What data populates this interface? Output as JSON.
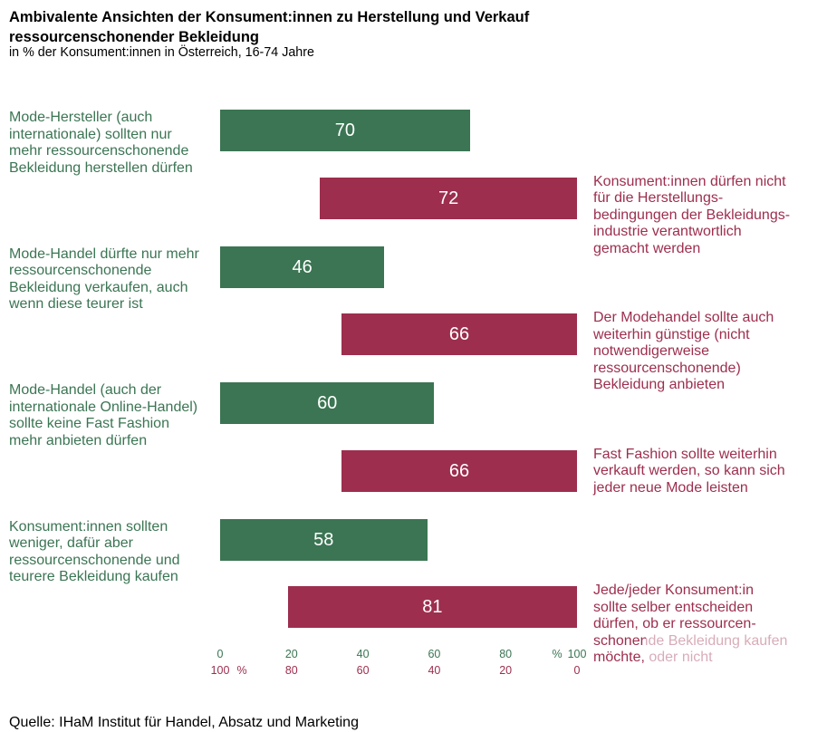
{
  "source": "Quelle: IHaM Institut für Handel, Absatz und Marketing",
  "chart_data": {
    "type": "bar",
    "title_lines": [
      "Ambivalente Ansichten der Konsument:innen zu Herstellung und Verkauf",
      "ressourcenschonender Bekleidung"
    ],
    "subtitle": "in % der Konsument:innen in Österreich, 16-74 Jahre",
    "series": [
      {
        "color": "#3b7553",
        "categories": [
          [
            "Mode-Hersteller (auch",
            "internationale) sollten nur",
            "mehr ressourcenschonende",
            "Bekleidung herstellen dürfen"
          ],
          [
            "Mode-Handel dürfte nur mehr",
            "ressourcenschonende",
            "Bekleidung verkaufen, auch",
            "wenn diese teurer ist"
          ],
          [
            "Mode-Handel (auch der",
            "internationale Online-Handel)",
            "sollte keine Fast Fashion",
            "mehr anbieten dürfen"
          ],
          [
            "Konsument:innen sollten",
            "weniger, dafür aber",
            "ressourcenschonende und",
            "teurere Bekleidung kaufen"
          ]
        ],
        "values": [
          70,
          46,
          60,
          58
        ]
      },
      {
        "color": "#9d2e4e",
        "categories": [
          [
            "Konsument:innen dürfen nicht",
            "für die Herstellungs-",
            "bedingungen der Bekleidungs-",
            "industrie verantwortlich",
            "gemacht werden"
          ],
          [
            "Der Modehandel sollte auch",
            "weiterhin günstige (nicht",
            "notwendigerweise",
            "ressourcenschonende)",
            "Bekleidung anbieten"
          ],
          [
            "Fast Fashion sollte weiterhin",
            "verkauft werden, so kann sich",
            "jeder neue Mode leisten"
          ],
          [
            "Jede/jeder Konsument:in",
            "sollte selber entscheiden",
            "dürfen, ob er ressourcen-",
            "schonende Bekleidung kaufen",
            "möchte, oder nicht"
          ]
        ],
        "values": [
          72,
          66,
          66,
          81
        ]
      }
    ],
    "axes": [
      {
        "range": [
          0,
          100
        ],
        "ticks": [
          0,
          20,
          40,
          60,
          80,
          100
        ],
        "unit_label": "%",
        "color": "#3b7553"
      },
      {
        "range": [
          100,
          0
        ],
        "ticks": [
          100,
          80,
          60,
          40,
          20,
          0
        ],
        "unit_label": "%",
        "color": "#9d2e4e"
      }
    ]
  }
}
